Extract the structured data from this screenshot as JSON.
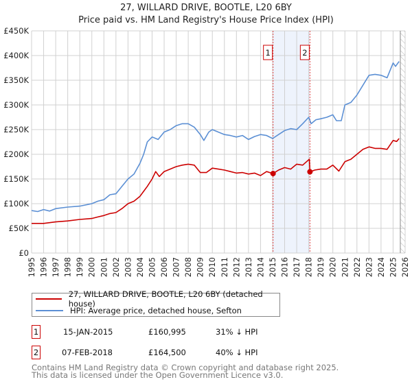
{
  "title": "27, WILLARD DRIVE, BOOTLE, L20 6BY",
  "subtitle": "Price paid vs. HM Land Registry's House Price Index (HPI)",
  "legend": {
    "property": "27, WILLARD DRIVE, BOOTLE, L20 6BY (detached house)",
    "hpi": "HPI: Average price, detached house, Sefton"
  },
  "sales": [
    {
      "num": "1",
      "date": "15-JAN-2015",
      "price": "£160,995",
      "diff": "31% ↓ HPI"
    },
    {
      "num": "2",
      "date": "07-FEB-2018",
      "price": "£164,500",
      "diff": "40% ↓ HPI"
    }
  ],
  "footer": {
    "line1": "Contains HM Land Registry data © Crown copyright and database right 2025.",
    "line2": "This data is licensed under the Open Government Licence v3.0."
  },
  "chart_data": {
    "type": "line",
    "title": "27, WILLARD DRIVE, BOOTLE, L20 6BY",
    "xlim": [
      1995,
      2026
    ],
    "ylim": [
      0,
      450000
    ],
    "yticks": [
      0,
      50000,
      100000,
      150000,
      200000,
      250000,
      300000,
      350000,
      400000,
      450000
    ],
    "ytick_labels": [
      "£0",
      "£50K",
      "£100K",
      "£150K",
      "£200K",
      "£250K",
      "£300K",
      "£350K",
      "£400K",
      "£450K"
    ],
    "xticks": [
      1995,
      1996,
      1997,
      1998,
      1999,
      2000,
      2001,
      2002,
      2003,
      2004,
      2005,
      2006,
      2007,
      2008,
      2009,
      2010,
      2011,
      2012,
      2013,
      2014,
      2015,
      2016,
      2017,
      2018,
      2019,
      2020,
      2021,
      2022,
      2023,
      2024,
      2025,
      2026
    ],
    "grid": true,
    "colors": {
      "property": "#cc0000",
      "hpi": "#5b8fd4",
      "band": "#eef3fc",
      "marker": "#cc0000"
    },
    "sale_markers": [
      {
        "label": "1",
        "x": 2015.04,
        "y": 160995
      },
      {
        "label": "2",
        "x": 2018.1,
        "y": 164500
      }
    ],
    "forecast_hatch_from": 2025.6,
    "series": [
      {
        "name": "HPI: Average price, detached house, Sefton",
        "x": [
          1995,
          1995.5,
          1996,
          1996.5,
          1997,
          1998,
          1999,
          2000,
          2000.5,
          2001,
          2001.5,
          2002,
          2002.5,
          2003,
          2003.5,
          2004,
          2004.3,
          2004.6,
          2005,
          2005.5,
          2006,
          2006.5,
          2007,
          2007.5,
          2008,
          2008.5,
          2009,
          2009.3,
          2009.7,
          2010,
          2010.5,
          2011,
          2011.5,
          2012,
          2012.5,
          2013,
          2013.5,
          2014,
          2014.5,
          2015,
          2015.5,
          2016,
          2016.5,
          2017,
          2017.5,
          2018,
          2018.2,
          2018.6,
          2019,
          2019.5,
          2020,
          2020.3,
          2020.7,
          2021,
          2021.5,
          2022,
          2022.5,
          2023,
          2023.5,
          2024,
          2024.5,
          2025,
          2025.2,
          2025.5
        ],
        "y": [
          86000,
          84000,
          88000,
          85000,
          90000,
          93000,
          95000,
          100000,
          105000,
          108000,
          118000,
          120000,
          135000,
          150000,
          160000,
          182000,
          200000,
          225000,
          235000,
          230000,
          245000,
          250000,
          258000,
          262000,
          262000,
          255000,
          240000,
          228000,
          245000,
          250000,
          245000,
          240000,
          238000,
          235000,
          238000,
          230000,
          236000,
          240000,
          238000,
          232000,
          240000,
          248000,
          252000,
          250000,
          262000,
          275000,
          262000,
          270000,
          272000,
          275000,
          280000,
          268000,
          268000,
          300000,
          305000,
          320000,
          340000,
          360000,
          362000,
          360000,
          355000,
          385000,
          378000,
          388000
        ]
      },
      {
        "name": "27, WILLARD DRIVE, BOOTLE, L20 6BY (detached house)",
        "x": [
          1995,
          1996,
          1997,
          1998,
          1999,
          2000,
          2000.5,
          2001,
          2001.5,
          2002,
          2002.5,
          2003,
          2003.5,
          2004,
          2004.3,
          2004.6,
          2005,
          2005.3,
          2005.6,
          2006,
          2006.5,
          2007,
          2007.5,
          2008,
          2008.5,
          2009,
          2009.5,
          2010,
          2010.5,
          2011,
          2011.5,
          2012,
          2012.5,
          2013,
          2013.5,
          2014,
          2014.5,
          2015.04,
          2015.5,
          2016,
          2016.5,
          2017,
          2017.5,
          2018.05,
          2018.1,
          2018.5,
          2019,
          2019.5,
          2020,
          2020.5,
          2021,
          2021.5,
          2022,
          2022.5,
          2023,
          2023.5,
          2024,
          2024.5,
          2025,
          2025.3,
          2025.5
        ],
        "y": [
          60000,
          60000,
          63000,
          65000,
          68000,
          70000,
          73000,
          76000,
          80000,
          82000,
          90000,
          100000,
          105000,
          115000,
          125000,
          135000,
          150000,
          165000,
          155000,
          165000,
          170000,
          175000,
          178000,
          180000,
          178000,
          163000,
          163000,
          172000,
          170000,
          168000,
          165000,
          162000,
          163000,
          160000,
          162000,
          157000,
          165000,
          160995,
          168000,
          173000,
          170000,
          180000,
          178000,
          190000,
          164500,
          168000,
          170000,
          170000,
          178000,
          166000,
          185000,
          190000,
          200000,
          210000,
          215000,
          212000,
          212000,
          210000,
          228000,
          226000,
          232000
        ]
      }
    ]
  }
}
